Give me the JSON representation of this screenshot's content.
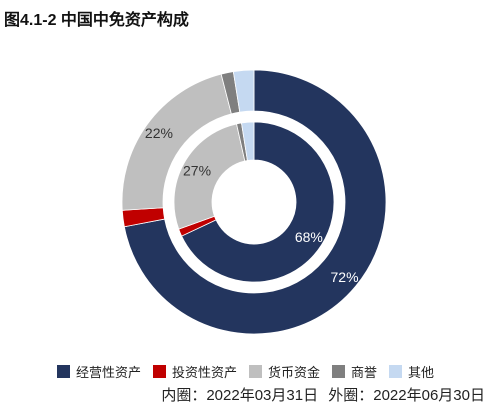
{
  "title": "图4.1-2 中国中免资产构成",
  "chart_data": {
    "type": "pie",
    "style": "nested-donut",
    "categories": [
      "经营性资产",
      "投资性资产",
      "货币资金",
      "商誉",
      "其他"
    ],
    "colors": [
      "#23355E",
      "#C00000",
      "#BFBFBF",
      "#7F7F7F",
      "#C5D9F1"
    ],
    "rings": [
      {
        "name": "内圈",
        "date": "2022年03月31日",
        "values": [
          68,
          1.5,
          27,
          1,
          2.5
        ]
      },
      {
        "name": "外圈",
        "date": "2022年06月30日",
        "values": [
          72,
          2,
          22,
          1.5,
          2.5
        ]
      }
    ],
    "labels": [
      {
        "ring": 0,
        "category": 0,
        "text": "68%"
      },
      {
        "ring": 0,
        "category": 2,
        "text": "27%"
      },
      {
        "ring": 1,
        "category": 0,
        "text": "72%"
      },
      {
        "ring": 1,
        "category": 2,
        "text": "22%"
      }
    ],
    "legend_position": "bottom"
  },
  "caption": {
    "inner": "内圈：2022年03月31日",
    "outer": "外圈：2022年06月30日"
  }
}
